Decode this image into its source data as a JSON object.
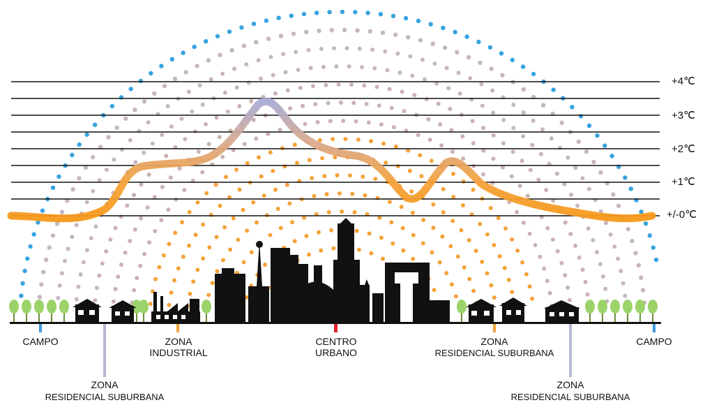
{
  "temperature_levels": [
    "+4℃",
    "+3℃",
    "+2℃",
    "+1℃",
    "+/-0℃"
  ],
  "zones": {
    "campo_left": {
      "line1": "CAMPO",
      "line2": "",
      "color": "#3a9be0"
    },
    "residencial_left": {
      "line1": "ZONA",
      "line2": "RESIDENCIAL SUBURBANA",
      "color": "#b7b9d2"
    },
    "industrial": {
      "line1": "ZONA",
      "line2": "INDUSTRIAL",
      "color": "#f0a43a"
    },
    "centro": {
      "line1": "CENTRO",
      "line2": "URBANO",
      "color": "#e8202a"
    },
    "residencial_right_top": {
      "line1": "ZONA",
      "line2": "RESIDENCIAL SUBURBANA",
      "color": "#f0a43a"
    },
    "residencial_right_bottom": {
      "line1": "ZONA",
      "line2": "RESIDENCIAL SUBURBANA",
      "color": "#b7b9d2"
    },
    "campo_right": {
      "line1": "CAMPO",
      "line2": "",
      "color": "#3a9be0"
    }
  },
  "colors": {
    "curve_warm": "#f59a1f",
    "curve_cool": "#a7abd3",
    "dots_inner": "#f5a23a",
    "dots_mid": "#c9b3b0",
    "dots_outer": "#37a3e0",
    "skyline": "#111111",
    "trees": "#9bd36a"
  }
}
